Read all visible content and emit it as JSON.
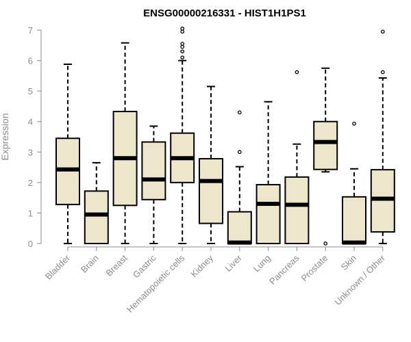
{
  "chart_data": {
    "type": "box",
    "title": "ENSG00000216331 - HIST1H1PS1",
    "xlabel": "",
    "ylabel": "Expression",
    "ylim": [
      0,
      7
    ],
    "yticks": [
      0,
      1,
      2,
      3,
      4,
      5,
      6,
      7
    ],
    "grid": false,
    "box_fill": "#ede6cc",
    "box_stroke": "#000000",
    "axis_color": "#8c8c8c",
    "categories": [
      "Bladder",
      "Brain",
      "Breast",
      "Gastric",
      "Hematopoietic cells",
      "Kidney",
      "Liver",
      "Lung",
      "Pancreas",
      "Prostate",
      "Skin",
      "Unknown / Other"
    ],
    "boxes": [
      {
        "category": "Bladder",
        "whisker_low": 0.0,
        "q1": 1.28,
        "median": 2.43,
        "q3": 3.45,
        "whisker_high": 5.88,
        "outliers": []
      },
      {
        "category": "Brain",
        "whisker_low": 0.0,
        "q1": 0.0,
        "median": 0.95,
        "q3": 1.72,
        "whisker_high": 2.65,
        "outliers": []
      },
      {
        "category": "Breast",
        "whisker_low": 0.0,
        "q1": 1.25,
        "median": 2.8,
        "q3": 4.33,
        "whisker_high": 6.58,
        "outliers": []
      },
      {
        "category": "Gastric",
        "whisker_low": 0.0,
        "q1": 1.44,
        "median": 2.1,
        "q3": 3.33,
        "whisker_high": 3.85,
        "outliers": []
      },
      {
        "category": "Hematopoietic cells",
        "whisker_low": 0.0,
        "q1": 2.0,
        "median": 2.8,
        "q3": 3.62,
        "whisker_high": 6.0,
        "outliers": [
          6.1,
          6.3,
          6.45,
          6.55,
          6.95,
          7.05
        ]
      },
      {
        "category": "Kidney",
        "whisker_low": 0.0,
        "q1": 0.66,
        "median": 2.05,
        "q3": 2.78,
        "whisker_high": 5.15,
        "outliers": []
      },
      {
        "category": "Liver",
        "whisker_low": 0.0,
        "q1": 0.0,
        "median": 0.03,
        "q3": 1.04,
        "whisker_high": 2.52,
        "outliers": [
          3.0,
          4.3
        ]
      },
      {
        "category": "Lung",
        "whisker_low": 0.0,
        "q1": 0.0,
        "median": 1.3,
        "q3": 1.93,
        "whisker_high": 4.65,
        "outliers": []
      },
      {
        "category": "Pancreas",
        "whisker_low": 0.0,
        "q1": 0.0,
        "median": 1.27,
        "q3": 2.18,
        "whisker_high": 3.26,
        "outliers": [
          5.62
        ]
      },
      {
        "category": "Prostate",
        "whisker_low": 2.35,
        "q1": 2.43,
        "median": 3.33,
        "q3": 4.0,
        "whisker_high": 5.75,
        "outliers": [
          0.0
        ]
      },
      {
        "category": "Skin",
        "whisker_low": 0.0,
        "q1": 0.0,
        "median": 0.03,
        "q3": 1.53,
        "whisker_high": 2.45,
        "outliers": [
          3.93
        ]
      },
      {
        "category": "Unknown / Other",
        "whisker_low": 0.0,
        "q1": 0.38,
        "median": 1.47,
        "q3": 2.42,
        "whisker_high": 5.43,
        "outliers": [
          5.62,
          6.95
        ]
      }
    ]
  }
}
